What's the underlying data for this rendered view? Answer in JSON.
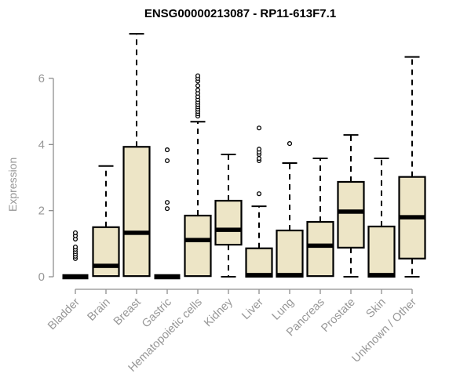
{
  "chart_data": {
    "type": "boxplot",
    "title": "ENSG00000213087 - RP11-613F7.1",
    "ylabel": "Expression",
    "xlabel": "",
    "yticks": [
      0,
      2,
      4,
      6
    ],
    "ylim": [
      0,
      7.6
    ],
    "grid": false,
    "legend": false,
    "categories": [
      "Bladder",
      "Brain",
      "Breast",
      "Gastric",
      "Hematopoietic cells",
      "Kidney",
      "Liver",
      "Lung",
      "Pancreas",
      "Prostate",
      "Skin",
      "Unknown / Other"
    ],
    "series": [
      {
        "name": "Bladder",
        "whisker_low": 0,
        "q1": 0,
        "median": 0,
        "q3": 0,
        "whisker_high": 0,
        "outliers": [
          0.55,
          0.62,
          0.69,
          0.76,
          0.83,
          0.9,
          1.14,
          1.24,
          1.33
        ]
      },
      {
        "name": "Brain",
        "whisker_low": 0,
        "q1": 0.02,
        "median": 0.33,
        "q3": 1.5,
        "whisker_high": 3.35,
        "outliers": []
      },
      {
        "name": "Breast",
        "whisker_low": 0,
        "q1": 0.02,
        "median": 1.33,
        "q3": 3.93,
        "whisker_high": 7.35,
        "outliers": []
      },
      {
        "name": "Gastric",
        "whisker_low": 0,
        "q1": 0,
        "median": 0,
        "q3": 0,
        "whisker_high": 0,
        "outliers": [
          2.06,
          2.25,
          3.51,
          3.84
        ]
      },
      {
        "name": "Hematopoietic cells",
        "whisker_low": 0,
        "q1": 0.02,
        "median": 1.11,
        "q3": 1.85,
        "whisker_high": 4.69,
        "outliers": [
          4.86,
          4.93,
          5.0,
          5.07,
          5.14,
          5.21,
          5.28,
          5.36,
          5.45,
          5.55,
          5.65,
          5.78,
          5.92,
          6.0,
          6.08
        ]
      },
      {
        "name": "Kidney",
        "whisker_low": 0,
        "q1": 0.97,
        "median": 1.42,
        "q3": 2.3,
        "whisker_high": 3.7,
        "outliers": []
      },
      {
        "name": "Liver",
        "whisker_low": 0,
        "q1": 0,
        "median": 0.05,
        "q3": 0.86,
        "whisker_high": 2.13,
        "outliers": [
          2.51,
          3.51,
          3.58,
          3.7,
          3.77,
          3.86,
          4.5
        ]
      },
      {
        "name": "Lung",
        "whisker_low": 0,
        "q1": 0,
        "median": 0.05,
        "q3": 1.4,
        "whisker_high": 3.44,
        "outliers": [
          4.03
        ]
      },
      {
        "name": "Pancreas",
        "whisker_low": 0,
        "q1": 0.02,
        "median": 0.94,
        "q3": 1.66,
        "whisker_high": 3.58,
        "outliers": []
      },
      {
        "name": "Prostate",
        "whisker_low": 0,
        "q1": 0.88,
        "median": 1.97,
        "q3": 2.87,
        "whisker_high": 4.29,
        "outliers": []
      },
      {
        "name": "Skin",
        "whisker_low": 0,
        "q1": 0,
        "median": 0.05,
        "q3": 1.52,
        "whisker_high": 3.58,
        "outliers": []
      },
      {
        "name": "Unknown / Other",
        "whisker_low": 0,
        "q1": 0.55,
        "median": 1.8,
        "q3": 3.02,
        "whisker_high": 6.65,
        "outliers": []
      }
    ],
    "colors": {
      "box_fill": "#ede5c6",
      "box_stroke": "#000000",
      "median": "#000000",
      "whisker": "#000000",
      "outlier_stroke": "#000000",
      "outlier_fill": "#ffffff",
      "axis": "#8f8f8f",
      "tick_text": "#979797",
      "title": "#000000"
    }
  }
}
